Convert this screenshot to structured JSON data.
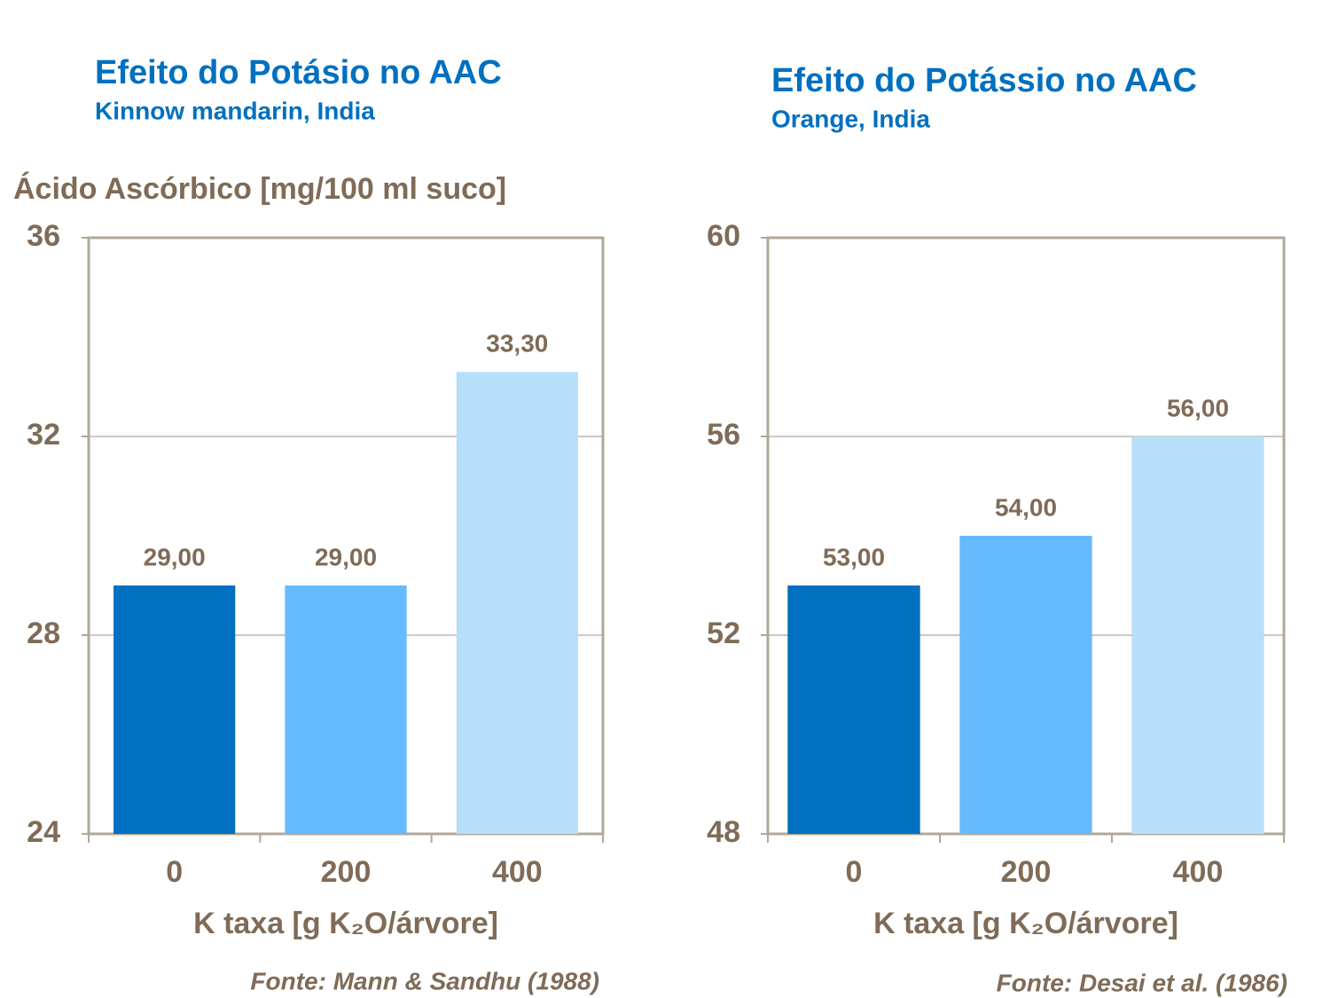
{
  "chart_data": [
    {
      "type": "bar",
      "title": "Efeito do Potásio no AAC",
      "subtitle": "Kinnow mandarin, India",
      "y_label": "Ácido Ascórbico [mg/100 ml suco]",
      "x_label": "K taxa [g K₂O/árvore]",
      "source": "Fonte: Mann & Sandhu (1988)",
      "categories": [
        "0",
        "200",
        "400"
      ],
      "values": [
        29,
        29,
        33.3
      ],
      "value_labels": [
        "29,00",
        "29,00",
        "33,30"
      ],
      "colors": [
        "#0070c0",
        "#66bbff",
        "#b8dffa"
      ],
      "ylim": [
        24,
        36
      ],
      "yticks": [
        24,
        28,
        32,
        36
      ],
      "grid": true
    },
    {
      "type": "bar",
      "title": "Efeito do Potássio no AAC",
      "subtitle": "Orange, India",
      "x_label": "K taxa [g K₂O/árvore]",
      "source": "Fonte: Desai et al. (1986)",
      "categories": [
        "0",
        "200",
        "400"
      ],
      "values": [
        53,
        54,
        56
      ],
      "value_labels": [
        "53,00",
        "54,00",
        "56,00"
      ],
      "colors": [
        "#0070c0",
        "#66bbff",
        "#b8dffa"
      ],
      "ylim": [
        48,
        60
      ],
      "yticks": [
        48,
        52,
        56,
        60
      ],
      "grid": true
    }
  ]
}
